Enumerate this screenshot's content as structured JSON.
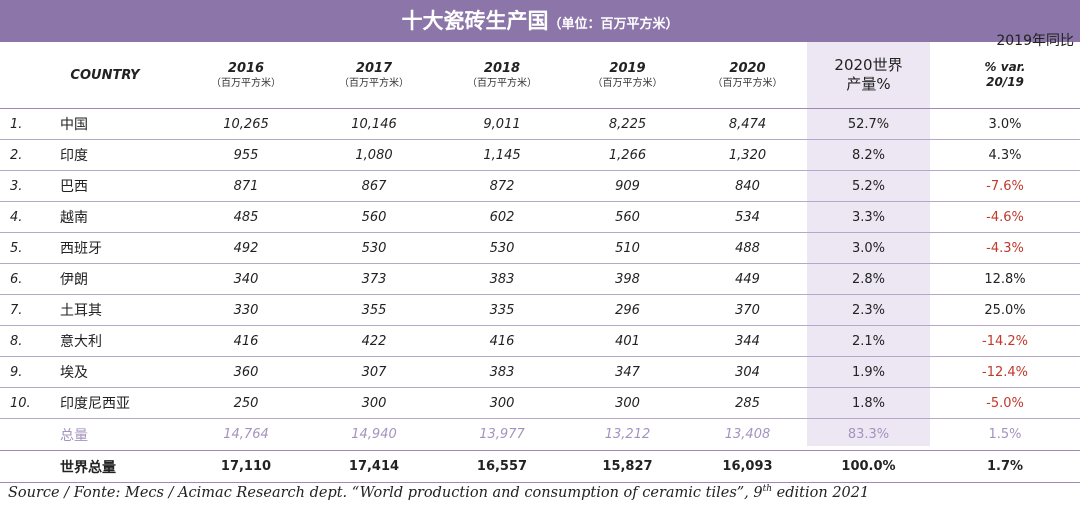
{
  "title": {
    "main": "十大瓷砖生产国",
    "sub": "（单位：百万平方米）"
  },
  "yoy_note": "2019年同比",
  "header": {
    "country": "COUNTRY",
    "unit": "（百万平方米）",
    "years": [
      "2016",
      "2017",
      "2018",
      "2019",
      "2020"
    ],
    "share_line1": "2020世界",
    "share_line2": "产量%",
    "var_line1": "% var.",
    "var_line2": "20/19"
  },
  "rows": [
    {
      "rank": "1.",
      "name": "中国",
      "v2016": "10,265",
      "v2017": "10,146",
      "v2018": "9,011",
      "v2019": "8,225",
      "v2020": "8,474",
      "share": "52.7%",
      "var": "3.0%"
    },
    {
      "rank": "2.",
      "name": "印度",
      "v2016": "955",
      "v2017": "1,080",
      "v2018": "1,145",
      "v2019": "1,266",
      "v2020": "1,320",
      "share": "8.2%",
      "var": "4.3%"
    },
    {
      "rank": "3.",
      "name": "巴西",
      "v2016": "871",
      "v2017": "867",
      "v2018": "872",
      "v2019": "909",
      "v2020": "840",
      "share": "5.2%",
      "var": "-7.6%"
    },
    {
      "rank": "4.",
      "name": "越南",
      "v2016": "485",
      "v2017": "560",
      "v2018": "602",
      "v2019": "560",
      "v2020": "534",
      "share": "3.3%",
      "var": "-4.6%"
    },
    {
      "rank": "5.",
      "name": "西班牙",
      "v2016": "492",
      "v2017": "530",
      "v2018": "530",
      "v2019": "510",
      "v2020": "488",
      "share": "3.0%",
      "var": "-4.3%"
    },
    {
      "rank": "6.",
      "name": "伊朗",
      "v2016": "340",
      "v2017": "373",
      "v2018": "383",
      "v2019": "398",
      "v2020": "449",
      "share": "2.8%",
      "var": "12.8%"
    },
    {
      "rank": "7.",
      "name": "土耳其",
      "v2016": "330",
      "v2017": "355",
      "v2018": "335",
      "v2019": "296",
      "v2020": "370",
      "share": "2.3%",
      "var": "25.0%"
    },
    {
      "rank": "8.",
      "name": "意大利",
      "v2016": "416",
      "v2017": "422",
      "v2018": "416",
      "v2019": "401",
      "v2020": "344",
      "share": "2.1%",
      "var": "-14.2%"
    },
    {
      "rank": "9.",
      "name": "埃及",
      "v2016": "360",
      "v2017": "307",
      "v2018": "383",
      "v2019": "347",
      "v2020": "304",
      "share": "1.9%",
      "var": "-12.4%"
    },
    {
      "rank": "10.",
      "name": "印度尼西亚",
      "v2016": "250",
      "v2017": "300",
      "v2018": "300",
      "v2019": "300",
      "v2020": "285",
      "share": "1.8%",
      "var": "-5.0%"
    }
  ],
  "total": {
    "name": "总量",
    "v2016": "14,764",
    "v2017": "14,940",
    "v2018": "13,977",
    "v2019": "13,212",
    "v2020": "13,408",
    "share": "83.3%",
    "var": "1.5%"
  },
  "world": {
    "name": "世界总量",
    "v2016": "17,110",
    "v2017": "17,414",
    "v2018": "16,557",
    "v2019": "15,827",
    "v2020": "16,093",
    "share": "100.0%",
    "var": "1.7%"
  },
  "source": {
    "before": "Source / Fonte: Mecs / Acimac Research dept. “World production and consumption of ceramic tiles”, 9",
    "sup": "th",
    "after": " edition 2021"
  },
  "colors": {
    "title_bar": "#8c75a9",
    "world_column": "#ece7f3",
    "total_text": "#a493bf",
    "negative": "#c0392b"
  }
}
